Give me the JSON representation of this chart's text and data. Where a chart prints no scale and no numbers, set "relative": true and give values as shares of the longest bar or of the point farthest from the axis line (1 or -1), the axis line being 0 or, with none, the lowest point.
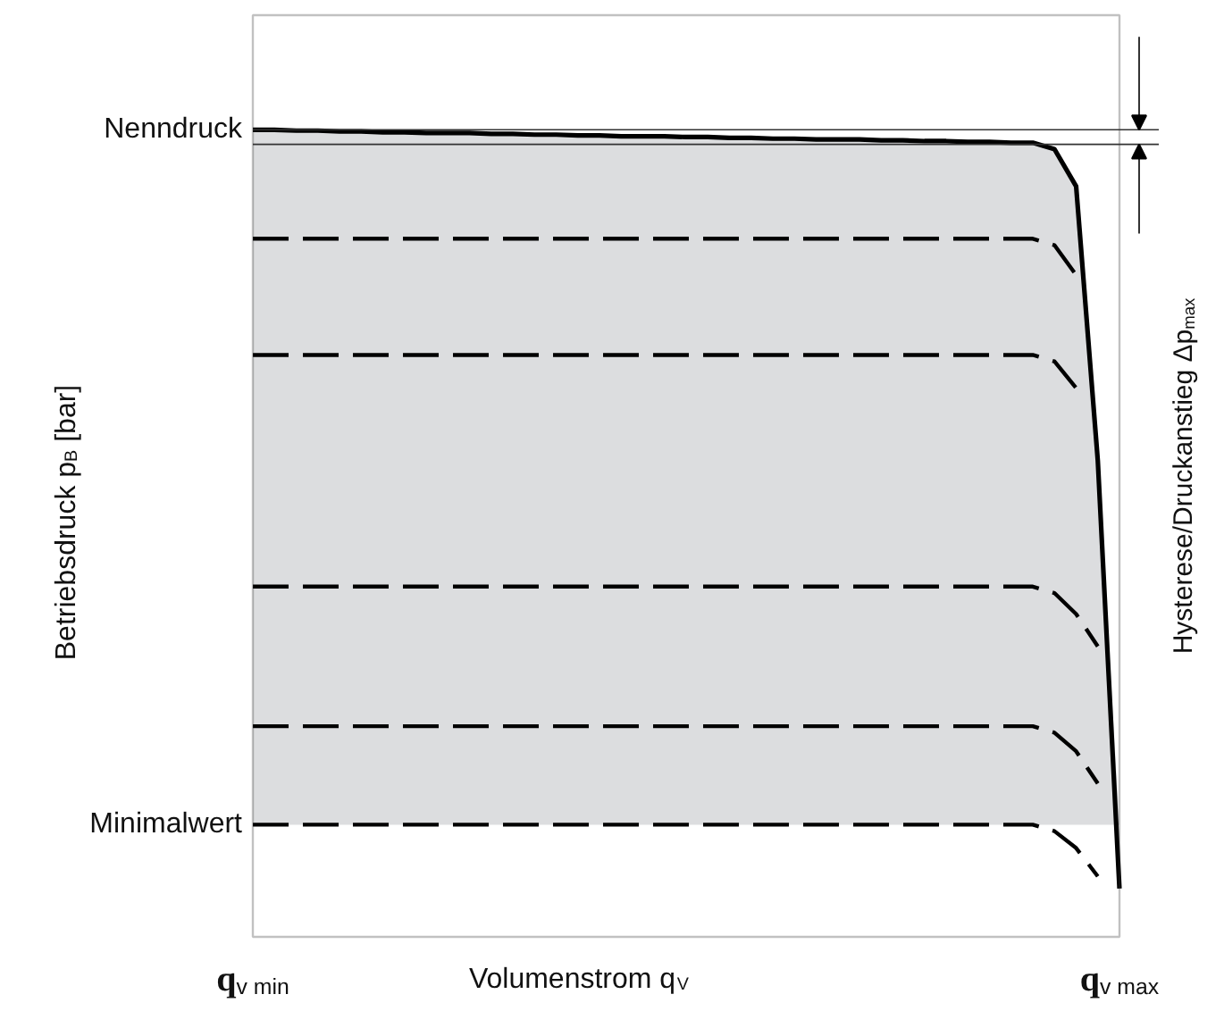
{
  "chart_data": {
    "type": "line",
    "relative": true,
    "xlabel": "Volumenstrom q$_{V}$",
    "ylabel": "Betriebsdruck p$_{B}$ [bar]",
    "y2label": "Hysterese/Druckanstieg Δp$_{max}$",
    "categories": [
      "q$_{v min}$",
      null,
      null,
      null,
      null,
      null,
      null,
      null,
      null,
      null,
      null,
      null,
      null,
      null,
      null,
      null,
      null,
      null,
      null,
      null,
      null,
      null,
      null,
      null,
      null,
      null,
      null,
      null,
      null,
      null,
      null,
      null,
      null,
      null,
      null,
      null,
      null,
      null,
      null,
      null,
      "q$_{v max}$"
    ],
    "bands": [
      {
        "axis": "y",
        "from": 0.139,
        "to": 1,
        "label": "Minimalwert",
        "color": "#dcdddf"
      }
    ],
    "series": [
      {
        "color": "#000000",
        "line_style": "solid",
        "values": [
          1.0,
          1.0,
          0.999,
          0.999,
          0.998,
          0.998,
          0.997,
          0.997,
          0.996,
          0.996,
          0.996,
          0.995,
          0.995,
          0.994,
          0.994,
          0.993,
          0.993,
          0.992,
          0.992,
          0.992,
          0.991,
          0.991,
          0.99,
          0.99,
          0.989,
          0.989,
          0.988,
          0.988,
          0.988,
          0.987,
          0.987,
          0.986,
          0.986,
          0.985,
          0.985,
          0.984,
          0.984,
          0.976,
          0.93,
          0.59,
          0.06
        ]
      },
      {
        "color": "#000000",
        "line_style": "dashed",
        "values": [
          0.865,
          0.865,
          0.865,
          0.865,
          0.865,
          0.865,
          0.865,
          0.865,
          0.865,
          0.865,
          0.865,
          0.865,
          0.865,
          0.865,
          0.865,
          0.865,
          0.865,
          0.865,
          0.865,
          0.865,
          0.865,
          0.865,
          0.865,
          0.865,
          0.865,
          0.865,
          0.865,
          0.865,
          0.865,
          0.865,
          0.865,
          0.865,
          0.865,
          0.865,
          0.865,
          0.865,
          0.865,
          0.857,
          0.82,
          null,
          null
        ]
      },
      {
        "color": "#000000",
        "line_style": "dashed",
        "values": [
          0.721,
          0.721,
          0.721,
          0.721,
          0.721,
          0.721,
          0.721,
          0.721,
          0.721,
          0.721,
          0.721,
          0.721,
          0.721,
          0.721,
          0.721,
          0.721,
          0.721,
          0.721,
          0.721,
          0.721,
          0.721,
          0.721,
          0.721,
          0.721,
          0.721,
          0.721,
          0.721,
          0.721,
          0.721,
          0.721,
          0.721,
          0.721,
          0.721,
          0.721,
          0.721,
          0.721,
          0.721,
          0.713,
          0.68,
          null,
          null
        ]
      },
      {
        "color": "#000000",
        "line_style": "dashed",
        "values": [
          0.434,
          0.434,
          0.434,
          0.434,
          0.434,
          0.434,
          0.434,
          0.434,
          0.434,
          0.434,
          0.434,
          0.434,
          0.434,
          0.434,
          0.434,
          0.434,
          0.434,
          0.434,
          0.434,
          0.434,
          0.434,
          0.434,
          0.434,
          0.434,
          0.434,
          0.434,
          0.434,
          0.434,
          0.434,
          0.434,
          0.434,
          0.434,
          0.434,
          0.434,
          0.434,
          0.434,
          0.434,
          0.426,
          0.4,
          0.36,
          null
        ]
      },
      {
        "color": "#000000",
        "line_style": "dashed",
        "values": [
          0.261,
          0.261,
          0.261,
          0.261,
          0.261,
          0.261,
          0.261,
          0.261,
          0.261,
          0.261,
          0.261,
          0.261,
          0.261,
          0.261,
          0.261,
          0.261,
          0.261,
          0.261,
          0.261,
          0.261,
          0.261,
          0.261,
          0.261,
          0.261,
          0.261,
          0.261,
          0.261,
          0.261,
          0.261,
          0.261,
          0.261,
          0.261,
          0.261,
          0.261,
          0.261,
          0.261,
          0.261,
          0.253,
          0.23,
          0.19,
          null
        ]
      },
      {
        "color": "#000000",
        "line_style": "dashed",
        "values": [
          0.139,
          0.139,
          0.139,
          0.139,
          0.139,
          0.139,
          0.139,
          0.139,
          0.139,
          0.139,
          0.139,
          0.139,
          0.139,
          0.139,
          0.139,
          0.139,
          0.139,
          0.139,
          0.139,
          0.139,
          0.139,
          0.139,
          0.139,
          0.139,
          0.139,
          0.139,
          0.139,
          0.139,
          0.139,
          0.139,
          0.139,
          0.139,
          0.139,
          0.139,
          0.139,
          0.139,
          0.139,
          0.131,
          0.11,
          0.075,
          null
        ]
      }
    ],
    "ref_lines": [
      {
        "axis": "y",
        "value": 1,
        "label": "Nenndruck"
      },
      {
        "axis": "y",
        "value": 0.982,
        "label": null
      }
    ]
  }
}
